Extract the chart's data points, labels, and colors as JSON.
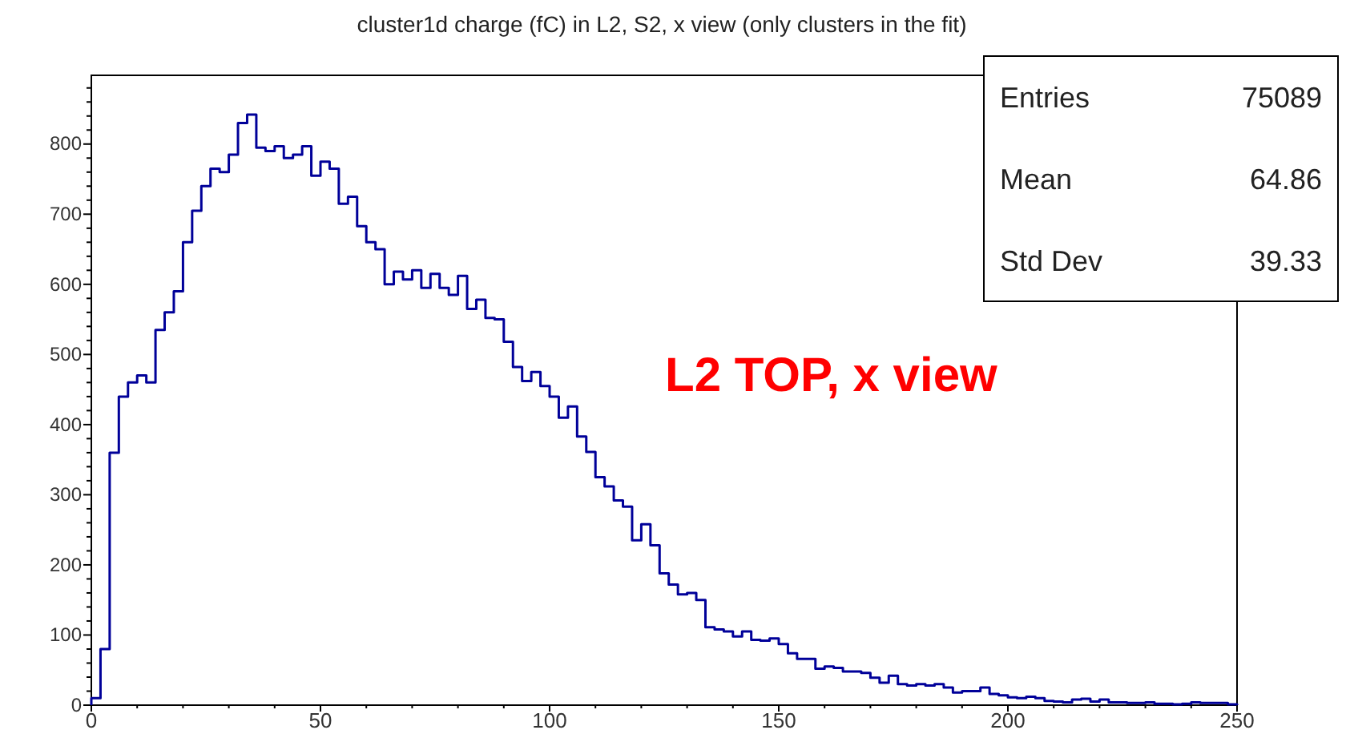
{
  "chart_data": {
    "type": "histogram",
    "title": "cluster1d charge (fC) in L2, S2, x view (only clusters in the fit)",
    "bins": [
      0,
      2,
      4,
      6,
      8,
      10,
      12,
      14,
      16,
      18,
      20,
      22,
      24,
      26,
      28,
      30,
      32,
      34,
      36,
      38,
      40,
      42,
      44,
      46,
      48,
      50,
      52,
      54,
      56,
      58,
      60,
      62,
      64,
      66,
      68,
      70,
      72,
      74,
      76,
      78,
      80,
      82,
      84,
      86,
      88,
      90,
      92,
      94,
      96,
      98,
      100,
      102,
      104,
      106,
      108,
      110,
      112,
      114,
      116,
      118,
      120,
      122,
      124,
      126,
      128,
      130,
      132,
      134,
      136,
      138,
      140,
      142,
      144,
      146,
      148,
      150,
      152,
      154,
      156,
      158,
      160,
      162,
      164,
      166,
      168,
      170,
      172,
      174,
      176,
      178,
      180,
      182,
      184,
      186,
      188,
      190,
      192,
      194,
      196,
      198,
      200,
      202,
      204,
      206,
      208,
      210,
      212,
      214,
      216,
      218,
      220,
      222,
      224,
      226,
      228,
      230,
      232,
      234,
      236,
      238,
      240,
      242,
      244,
      246,
      248,
      250
    ],
    "values": [
      10,
      80,
      360,
      440,
      460,
      470,
      460,
      535,
      560,
      590,
      660,
      705,
      740,
      765,
      760,
      785,
      830,
      842,
      795,
      790,
      797,
      780,
      785,
      797,
      755,
      775,
      765,
      715,
      725,
      683,
      660,
      650,
      600,
      618,
      607,
      620,
      595,
      615,
      595,
      585,
      612,
      565,
      578,
      552,
      550,
      518,
      482,
      462,
      475,
      455,
      440,
      410,
      426,
      383,
      361,
      325,
      312,
      292,
      283,
      235,
      258,
      228,
      188,
      172,
      158,
      160,
      150,
      111,
      108,
      105,
      98,
      105,
      93,
      92,
      95,
      87,
      74,
      66,
      66,
      52,
      55,
      53,
      48,
      48,
      46,
      39,
      32,
      42,
      30,
      28,
      30,
      28,
      30,
      25,
      18,
      20,
      20,
      25,
      16,
      14,
      11,
      10,
      12,
      10,
      6,
      5,
      4,
      8,
      9,
      5,
      8,
      4,
      4,
      3,
      3,
      4,
      2,
      2,
      1,
      2,
      4,
      3,
      3,
      3,
      1
    ],
    "color": "#000099",
    "xlim": [
      0,
      250
    ],
    "ylim": [
      0,
      898
    ],
    "xticks": [
      0,
      {
        "value": 10,
        "label": null
      },
      {
        "value": 20,
        "label": null
      },
      {
        "value": 30,
        "label": null
      },
      {
        "value": 40,
        "label": null
      },
      50,
      {
        "value": 60,
        "label": null
      },
      {
        "value": 70,
        "label": null
      },
      {
        "value": 80,
        "label": null
      },
      {
        "value": 90,
        "label": null
      },
      100,
      {
        "value": 110,
        "label": null
      },
      {
        "value": 120,
        "label": null
      },
      {
        "value": 130,
        "label": null
      },
      {
        "value": 140,
        "label": null
      },
      150,
      {
        "value": 160,
        "label": null
      },
      {
        "value": 170,
        "label": null
      },
      {
        "value": 180,
        "label": null
      },
      {
        "value": 190,
        "label": null
      },
      200,
      {
        "value": 210,
        "label": null
      },
      {
        "value": 220,
        "label": null
      },
      {
        "value": 230,
        "label": null
      },
      {
        "value": 240,
        "label": null
      },
      250
    ],
    "yticks": [
      0,
      {
        "value": 20,
        "label": null
      },
      {
        "value": 40,
        "label": null
      },
      {
        "value": 60,
        "label": null
      },
      {
        "value": 80,
        "label": null
      },
      100,
      {
        "value": 120,
        "label": null
      },
      {
        "value": 140,
        "label": null
      },
      {
        "value": 160,
        "label": null
      },
      {
        "value": 180,
        "label": null
      },
      200,
      {
        "value": 220,
        "label": null
      },
      {
        "value": 240,
        "label": null
      },
      {
        "value": 260,
        "label": null
      },
      {
        "value": 280,
        "label": null
      },
      300,
      {
        "value": 320,
        "label": null
      },
      {
        "value": 340,
        "label": null
      },
      {
        "value": 360,
        "label": null
      },
      {
        "value": 380,
        "label": null
      },
      400,
      {
        "value": 420,
        "label": null
      },
      {
        "value": 440,
        "label": null
      },
      {
        "value": 460,
        "label": null
      },
      {
        "value": 480,
        "label": null
      },
      500,
      {
        "value": 520,
        "label": null
      },
      {
        "value": 540,
        "label": null
      },
      {
        "value": 560,
        "label": null
      },
      {
        "value": 580,
        "label": null
      },
      600,
      {
        "value": 620,
        "label": null
      },
      {
        "value": 640,
        "label": null
      },
      {
        "value": 660,
        "label": null
      },
      {
        "value": 680,
        "label": null
      },
      700,
      {
        "value": 720,
        "label": null
      },
      {
        "value": 740,
        "label": null
      },
      {
        "value": 760,
        "label": null
      },
      {
        "value": 780,
        "label": null
      },
      800,
      {
        "value": 820,
        "label": null
      },
      {
        "value": 840,
        "label": null
      },
      {
        "value": 860,
        "label": null
      },
      {
        "value": 880,
        "label": null
      }
    ],
    "grid": false,
    "annotations": [
      "Entries",
      "75089",
      "Mean",
      "64.86",
      "Std Dev",
      "39.33",
      "L2 TOP, x view"
    ]
  }
}
